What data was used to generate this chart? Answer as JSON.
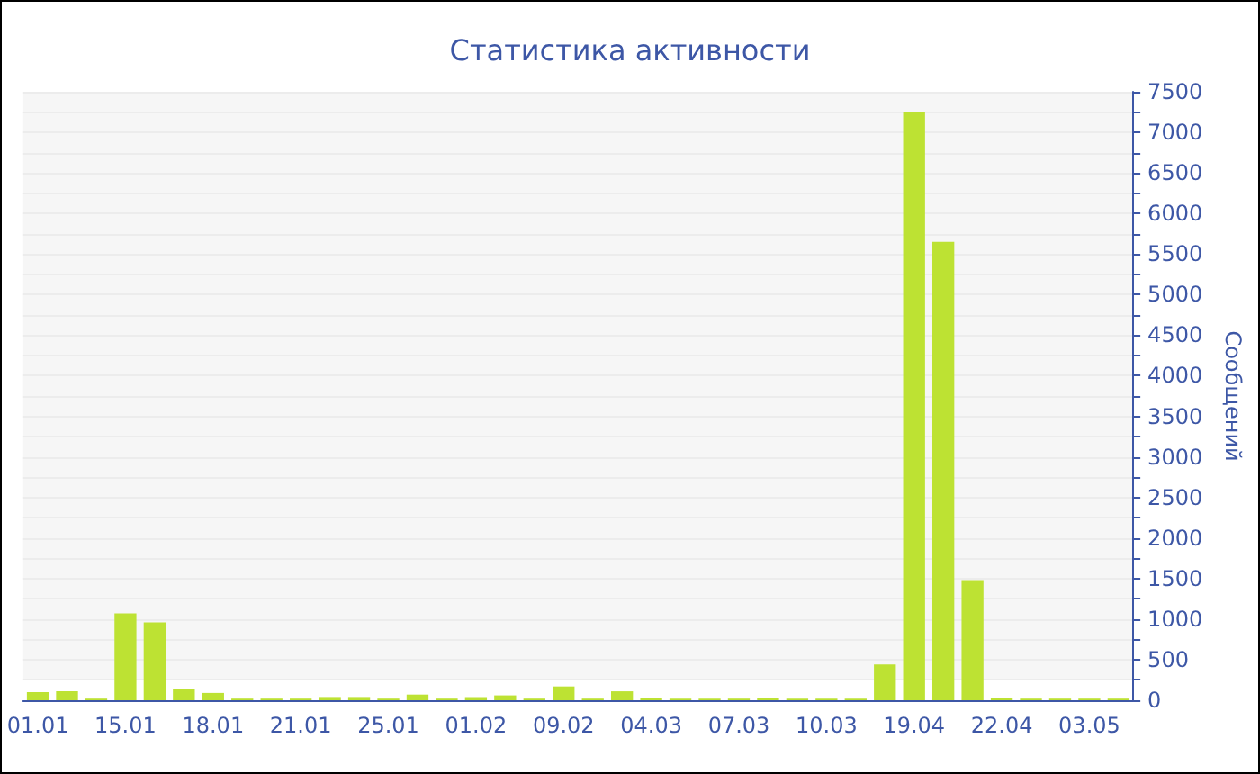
{
  "chart_data": {
    "type": "bar",
    "title": "Статистика активности",
    "ylabel": "Сообщений",
    "categories": [
      "01.01",
      null,
      null,
      "15.01",
      null,
      null,
      "18.01",
      null,
      null,
      "21.01",
      null,
      null,
      "25.01",
      null,
      null,
      "01.02",
      null,
      null,
      "09.02",
      null,
      null,
      "04.03",
      null,
      null,
      "07.03",
      null,
      null,
      "10.03",
      null,
      null,
      "19.04",
      null,
      null,
      "22.04",
      null,
      null,
      "03.05",
      null
    ],
    "values": [
      100,
      110,
      20,
      1070,
      960,
      140,
      90,
      20,
      20,
      20,
      40,
      40,
      20,
      70,
      20,
      40,
      60,
      20,
      170,
      20,
      110,
      30,
      20,
      20,
      20,
      30,
      20,
      20,
      20,
      440,
      7250,
      5650,
      1480,
      30,
      20,
      20,
      20,
      20
    ],
    "color": "#bde233",
    "ylim": [
      0,
      7500
    ],
    "yticks": [
      0,
      500,
      1000,
      1500,
      2000,
      2500,
      3000,
      3500,
      4000,
      4500,
      5000,
      5500,
      6000,
      6500,
      7000,
      7500
    ],
    "grid": "y"
  }
}
